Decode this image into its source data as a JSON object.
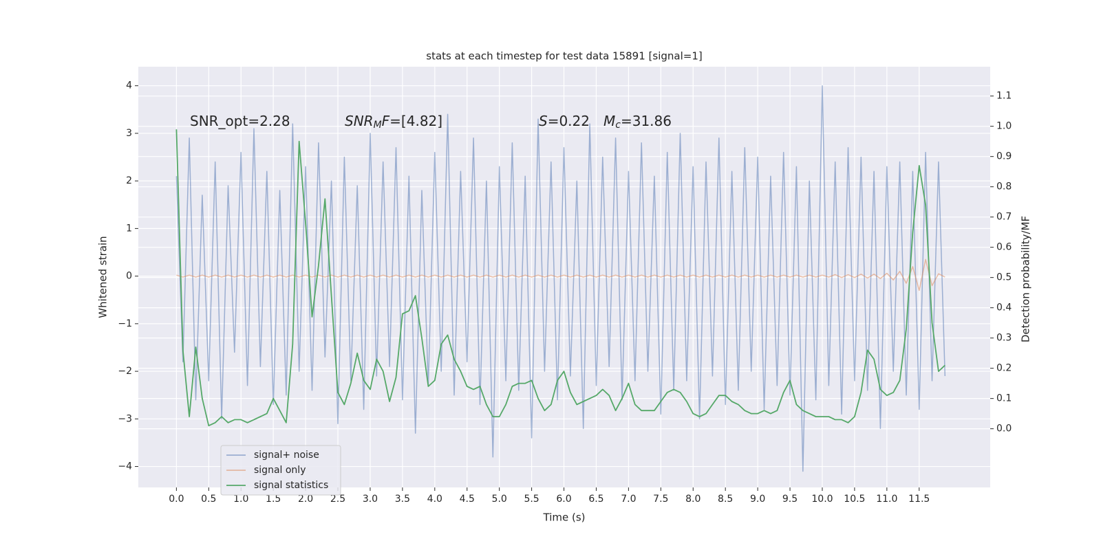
{
  "chart_data": {
    "type": "line",
    "title": "stats at each timestep for test data 15891 [signal=1]",
    "xlabel": "Time (s)",
    "ylabel": "Whitened strain",
    "y2label": "Detection probability/MF",
    "annotations": [
      {
        "parts": [
          {
            "text": "SNR_opt=2.28",
            "style": "normal"
          }
        ]
      },
      {
        "parts": [
          {
            "text": "SNR",
            "style": "italic"
          },
          {
            "text": "M",
            "style": "italic-sub"
          },
          {
            "text": "F",
            "style": "italic"
          },
          {
            "text": "=[4.82]",
            "style": "normal"
          }
        ]
      },
      {
        "parts": [
          {
            "text": "S",
            "style": "italic"
          },
          {
            "text": "=0.22",
            "style": "normal"
          }
        ]
      },
      {
        "parts": [
          {
            "text": "M",
            "style": "italic"
          },
          {
            "text": "c",
            "style": "italic-sub"
          },
          {
            "text": "=31.86",
            "style": "normal"
          }
        ]
      }
    ],
    "x": [
      0,
      0.1,
      0.2,
      0.3,
      0.4,
      0.5,
      0.6,
      0.7,
      0.8,
      0.9,
      1.0,
      1.1,
      1.2,
      1.3,
      1.4,
      1.5,
      1.6,
      1.7,
      1.8,
      1.9,
      2.0,
      2.1,
      2.2,
      2.3,
      2.4,
      2.5,
      2.6,
      2.7,
      2.8,
      2.9,
      3.0,
      3.1,
      3.2,
      3.3,
      3.4,
      3.5,
      3.6,
      3.7,
      3.8,
      3.9,
      4.0,
      4.1,
      4.2,
      4.3,
      4.4,
      4.5,
      4.6,
      4.7,
      4.8,
      4.9,
      5.0,
      5.1,
      5.2,
      5.3,
      5.4,
      5.5,
      5.6,
      5.7,
      5.8,
      5.9,
      6.0,
      6.1,
      6.2,
      6.3,
      6.4,
      6.5,
      6.6,
      6.7,
      6.8,
      6.9,
      7.0,
      7.1,
      7.2,
      7.3,
      7.4,
      7.5,
      7.6,
      7.7,
      7.8,
      7.9,
      8.0,
      8.1,
      8.2,
      8.3,
      8.4,
      8.5,
      8.6,
      8.7,
      8.8,
      8.9,
      9.0,
      9.1,
      9.2,
      9.3,
      9.4,
      9.5,
      9.6,
      9.7,
      9.8,
      9.9,
      10.0,
      10.1,
      10.2,
      10.3,
      10.4,
      10.5,
      10.6,
      10.7,
      10.8,
      10.9,
      11.0,
      11.1,
      11.2,
      11.3,
      11.4,
      11.5,
      11.6,
      11.7,
      11.8,
      11.9
    ],
    "series": [
      {
        "name": "signal+ noise",
        "color": "#4c72b0",
        "opacity": 0.5,
        "axis": "y",
        "values": [
          2.1,
          -1.8,
          2.9,
          -2.6,
          1.7,
          -2.2,
          2.4,
          -3.0,
          1.9,
          -1.6,
          2.6,
          -2.3,
          3.1,
          -1.9,
          2.2,
          -2.7,
          1.8,
          -2.5,
          3.2,
          -2.0,
          2.3,
          -2.4,
          2.8,
          -1.7,
          2.0,
          -3.1,
          2.5,
          -2.2,
          1.9,
          -2.8,
          3.0,
          -2.1,
          2.4,
          -1.9,
          2.7,
          -2.6,
          2.1,
          -3.3,
          1.8,
          -2.3,
          2.6,
          -2.0,
          3.4,
          -2.5,
          2.2,
          -1.8,
          2.9,
          -2.7,
          2.0,
          -3.8,
          2.3,
          -2.2,
          2.8,
          -2.4,
          2.1,
          -3.4,
          3.3,
          -2.0,
          2.4,
          -2.6,
          2.7,
          -2.1,
          2.0,
          -3.2,
          3.2,
          -2.3,
          2.5,
          -1.9,
          2.9,
          -2.6,
          2.2,
          -2.2,
          2.8,
          -2.0,
          2.1,
          -2.9,
          2.6,
          -2.4,
          3.0,
          -2.2,
          2.3,
          -3.0,
          2.4,
          -2.1,
          2.9,
          -2.7,
          2.2,
          -2.4,
          2.7,
          -2.0,
          2.5,
          -2.8,
          2.1,
          -2.3,
          2.6,
          -2.5,
          2.3,
          -4.1,
          2.0,
          -2.6,
          4.0,
          -2.3,
          2.4,
          -2.9,
          2.7,
          -2.2,
          2.5,
          -2.4,
          2.2,
          -3.2,
          2.3,
          -2.0,
          2.4,
          -2.5,
          2.2,
          -2.8,
          2.6,
          -2.2,
          2.4,
          -2.1
        ]
      },
      {
        "name": "signal only",
        "color": "#dd8452",
        "opacity": 0.5,
        "axis": "y",
        "values": [
          0.02,
          -0.02,
          0.02,
          -0.02,
          0.02,
          -0.02,
          0.02,
          -0.02,
          0.02,
          -0.02,
          0.02,
          -0.02,
          0.02,
          -0.02,
          0.02,
          -0.02,
          0.02,
          -0.02,
          0.02,
          -0.02,
          0.02,
          -0.02,
          0.02,
          -0.02,
          0.02,
          -0.02,
          0.02,
          -0.02,
          0.02,
          -0.02,
          0.02,
          -0.02,
          0.02,
          -0.02,
          0.02,
          -0.02,
          0.02,
          -0.02,
          0.02,
          -0.02,
          0.02,
          -0.02,
          0.02,
          -0.02,
          0.02,
          -0.02,
          0.02,
          -0.02,
          0.02,
          -0.02,
          0.02,
          -0.02,
          0.02,
          -0.02,
          0.02,
          -0.02,
          0.02,
          -0.02,
          0.02,
          -0.02,
          0.02,
          -0.02,
          0.02,
          -0.02,
          0.02,
          -0.02,
          0.02,
          -0.02,
          0.02,
          -0.02,
          0.02,
          -0.02,
          0.02,
          -0.02,
          0.02,
          -0.02,
          0.02,
          -0.02,
          0.02,
          -0.02,
          0.02,
          -0.02,
          0.02,
          -0.02,
          0.02,
          -0.02,
          0.02,
          -0.02,
          0.02,
          -0.02,
          0.02,
          -0.02,
          0.02,
          -0.02,
          0.02,
          -0.02,
          0.02,
          -0.02,
          0.02,
          -0.02,
          0.02,
          -0.02,
          0.03,
          -0.03,
          0.03,
          -0.03,
          0.04,
          -0.04,
          0.04,
          -0.05,
          0.06,
          -0.08,
          0.1,
          -0.15,
          0.2,
          -0.3,
          0.35,
          -0.2,
          0.05,
          -0.02
        ]
      },
      {
        "name": "signal statistics",
        "color": "#55a868",
        "opacity": 1,
        "axis": "y2",
        "values": [
          0.99,
          0.26,
          0.04,
          0.27,
          0.1,
          0.01,
          0.02,
          0.04,
          0.02,
          0.03,
          0.03,
          0.02,
          0.03,
          0.04,
          0.05,
          0.1,
          0.06,
          0.02,
          0.28,
          0.95,
          0.68,
          0.37,
          0.54,
          0.76,
          0.44,
          0.12,
          0.08,
          0.15,
          0.25,
          0.16,
          0.13,
          0.23,
          0.19,
          0.09,
          0.17,
          0.38,
          0.39,
          0.44,
          0.3,
          0.14,
          0.16,
          0.28,
          0.31,
          0.23,
          0.19,
          0.14,
          0.13,
          0.14,
          0.08,
          0.04,
          0.04,
          0.08,
          0.14,
          0.15,
          0.15,
          0.16,
          0.1,
          0.06,
          0.08,
          0.16,
          0.19,
          0.12,
          0.08,
          0.09,
          0.1,
          0.11,
          0.13,
          0.11,
          0.06,
          0.1,
          0.15,
          0.08,
          0.06,
          0.06,
          0.06,
          0.09,
          0.12,
          0.13,
          0.12,
          0.09,
          0.05,
          0.04,
          0.05,
          0.08,
          0.11,
          0.11,
          0.09,
          0.08,
          0.06,
          0.05,
          0.05,
          0.06,
          0.05,
          0.06,
          0.12,
          0.16,
          0.08,
          0.06,
          0.05,
          0.04,
          0.04,
          0.04,
          0.03,
          0.03,
          0.02,
          0.04,
          0.12,
          0.26,
          0.23,
          0.13,
          0.11,
          0.12,
          0.16,
          0.33,
          0.65,
          0.87,
          0.74,
          0.35,
          0.19,
          0.21
        ]
      }
    ],
    "xlim": [
      -0.59,
      12.6
    ],
    "ylim": [
      -4.44,
      4.4
    ],
    "y2lim": [
      -0.194,
      1.197
    ],
    "xticks": [
      {
        "value": 0,
        "label": "0.0"
      },
      0.5,
      {
        "value": 1,
        "label": "1.0"
      },
      1.5,
      {
        "value": 2,
        "label": "2.0"
      },
      2.5,
      {
        "value": 3,
        "label": "3.0"
      },
      3.5,
      {
        "value": 4,
        "label": "4.0"
      },
      4.5,
      {
        "value": 5,
        "label": "5.0"
      },
      5.5,
      {
        "value": 6,
        "label": "6.0"
      },
      6.5,
      {
        "value": 7,
        "label": "7.0"
      },
      7.5,
      {
        "value": 8,
        "label": "8.0"
      },
      8.5,
      {
        "value": 9,
        "label": "9.0"
      },
      9.5,
      {
        "value": 10,
        "label": "10.0"
      },
      10.5,
      {
        "value": 11,
        "label": "11.0"
      },
      11.5
    ],
    "yticks": [
      {
        "value": -4,
        "label": "−4"
      },
      {
        "value": -3,
        "label": "−3"
      },
      {
        "value": -2,
        "label": "−2"
      },
      {
        "value": -1,
        "label": "−1"
      },
      0,
      1,
      2,
      3,
      4
    ],
    "y2ticks": [
      {
        "value": 0,
        "label": "0.0"
      },
      0.1,
      0.2,
      0.3,
      0.4,
      0.5,
      0.6,
      0.7,
      0.8,
      0.9,
      {
        "value": 1,
        "label": "1.0"
      },
      1.1
    ],
    "grid": true,
    "legend": "lower left"
  }
}
